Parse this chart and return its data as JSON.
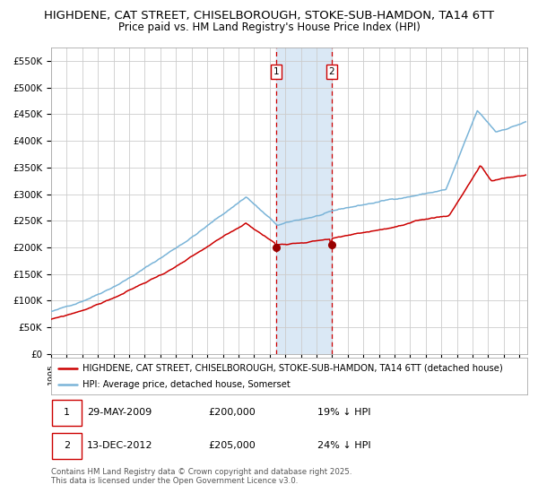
{
  "title_line1": "HIGHDENE, CAT STREET, CHISELBOROUGH, STOKE-SUB-HAMDON, TA14 6TT",
  "title_line2": "Price paid vs. HM Land Registry's House Price Index (HPI)",
  "ylim": [
    0,
    575000
  ],
  "yticks": [
    0,
    50000,
    100000,
    150000,
    200000,
    250000,
    300000,
    350000,
    400000,
    450000,
    500000,
    550000
  ],
  "ytick_labels": [
    "£0",
    "£50K",
    "£100K",
    "£150K",
    "£200K",
    "£250K",
    "£300K",
    "£350K",
    "£400K",
    "£450K",
    "£500K",
    "£550K"
  ],
  "hpi_color": "#7ab4d8",
  "price_color": "#cc0000",
  "marker_color": "#990000",
  "bg_color": "#ffffff",
  "grid_color": "#cccccc",
  "highlight_color": "#dae8f5",
  "vline_color": "#cc0000",
  "transaction1_date": 2009.41,
  "transaction1_price": 200000,
  "transaction1_label": "1",
  "transaction2_date": 2012.96,
  "transaction2_price": 205000,
  "transaction2_label": "2",
  "legend_label_price": "HIGHDENE, CAT STREET, CHISELBOROUGH, STOKE-SUB-HAMDON, TA14 6TT (detached house)",
  "legend_label_hpi": "HPI: Average price, detached house, Somerset",
  "footnote": "Contains HM Land Registry data © Crown copyright and database right 2025.\nThis data is licensed under the Open Government Licence v3.0.",
  "title_fontsize": 9.5,
  "subtitle_fontsize": 8.5
}
